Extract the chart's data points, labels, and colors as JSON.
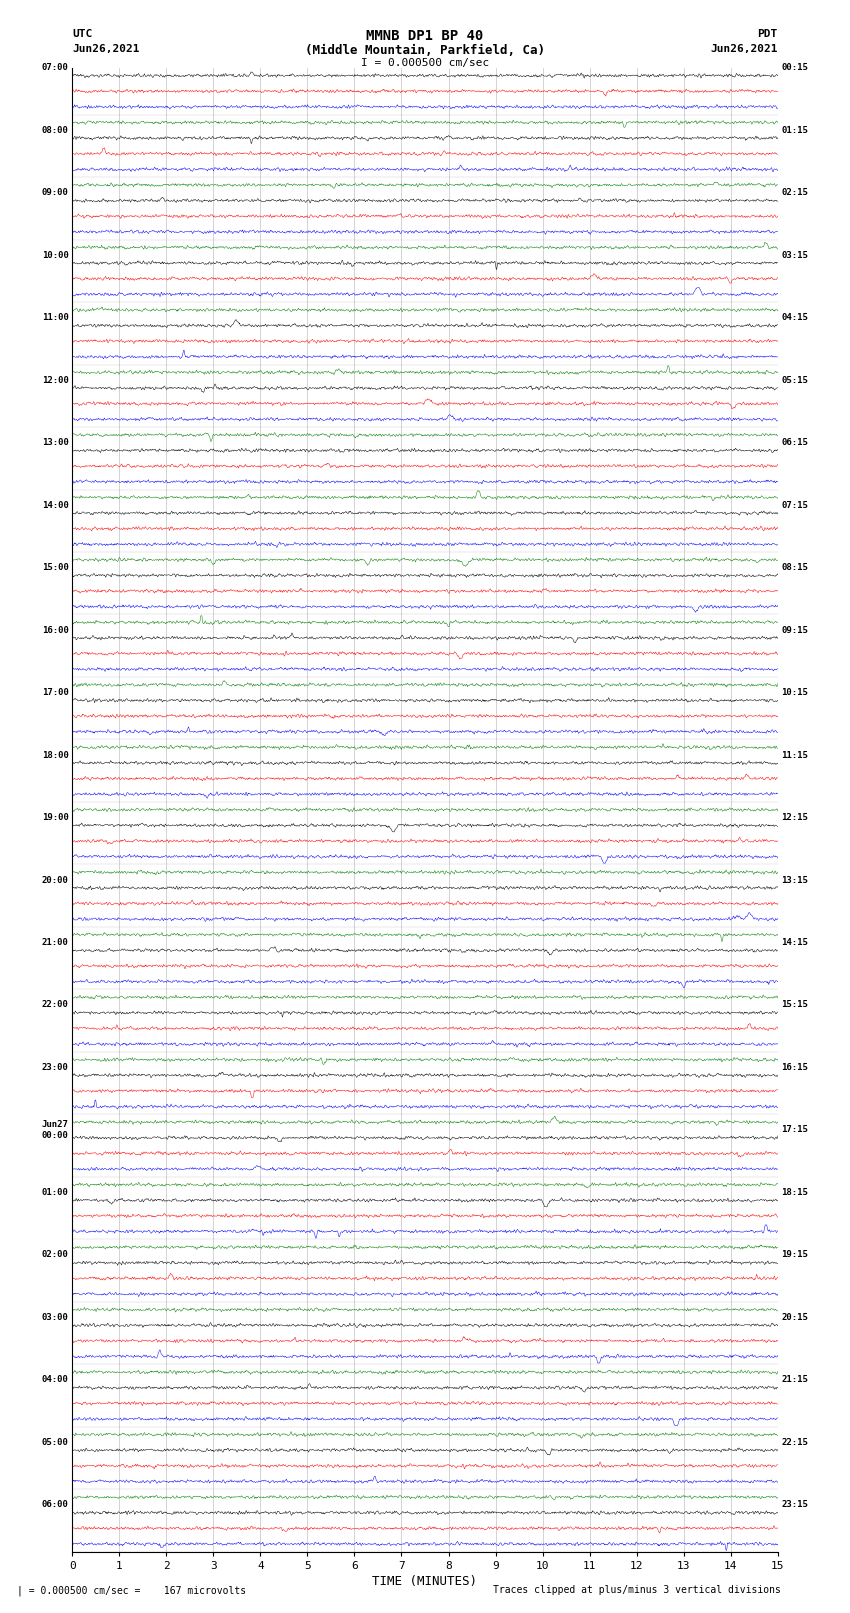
{
  "title_line1": "MMNB DP1 BP 40",
  "title_line2": "(Middle Mountain, Parkfield, Ca)",
  "scale_text": "I = 0.000500 cm/sec",
  "left_header": "UTC",
  "left_date": "Jun26,2021",
  "right_header": "PDT",
  "right_date": "Jun26,2021",
  "xlabel": "TIME (MINUTES)",
  "footer_left": "| = 0.000500 cm/sec =    167 microvolts",
  "footer_right": "Traces clipped at plus/minus 3 vertical divisions",
  "colors": [
    "black",
    "red",
    "blue",
    "green"
  ],
  "left_times": [
    "07:00",
    "",
    "",
    "",
    "08:00",
    "",
    "",
    "",
    "09:00",
    "",
    "",
    "",
    "10:00",
    "",
    "",
    "",
    "11:00",
    "",
    "",
    "",
    "12:00",
    "",
    "",
    "",
    "13:00",
    "",
    "",
    "",
    "14:00",
    "",
    "",
    "",
    "15:00",
    "",
    "",
    "",
    "16:00",
    "",
    "",
    "",
    "17:00",
    "",
    "",
    "",
    "18:00",
    "",
    "",
    "",
    "19:00",
    "",
    "",
    "",
    "20:00",
    "",
    "",
    "",
    "21:00",
    "",
    "",
    "",
    "22:00",
    "",
    "",
    "",
    "23:00",
    "",
    "",
    "",
    "Jun27\n00:00",
    "",
    "",
    "",
    "01:00",
    "",
    "",
    "",
    "02:00",
    "",
    "",
    "",
    "03:00",
    "",
    "",
    "",
    "04:00",
    "",
    "",
    "",
    "05:00",
    "",
    "",
    "",
    "06:00",
    "",
    ""
  ],
  "right_times": [
    "00:15",
    "",
    "",
    "",
    "01:15",
    "",
    "",
    "",
    "02:15",
    "",
    "",
    "",
    "03:15",
    "",
    "",
    "",
    "04:15",
    "",
    "",
    "",
    "05:15",
    "",
    "",
    "",
    "06:15",
    "",
    "",
    "",
    "07:15",
    "",
    "",
    "",
    "08:15",
    "",
    "",
    "",
    "09:15",
    "",
    "",
    "",
    "10:15",
    "",
    "",
    "",
    "11:15",
    "",
    "",
    "",
    "12:15",
    "",
    "",
    "",
    "13:15",
    "",
    "",
    "",
    "14:15",
    "",
    "",
    "",
    "15:15",
    "",
    "",
    "",
    "16:15",
    "",
    "",
    "",
    "17:15",
    "",
    "",
    "",
    "18:15",
    "",
    "",
    "",
    "19:15",
    "",
    "",
    "",
    "20:15",
    "",
    "",
    "",
    "21:15",
    "",
    "",
    "",
    "22:15",
    "",
    "",
    "",
    "23:15",
    "",
    ""
  ],
  "n_traces": 95,
  "trace_duration_pts": 1800,
  "noise_amplitude": 0.08,
  "xlim": [
    0,
    15
  ],
  "figsize": [
    8.5,
    16.13
  ],
  "dpi": 100
}
